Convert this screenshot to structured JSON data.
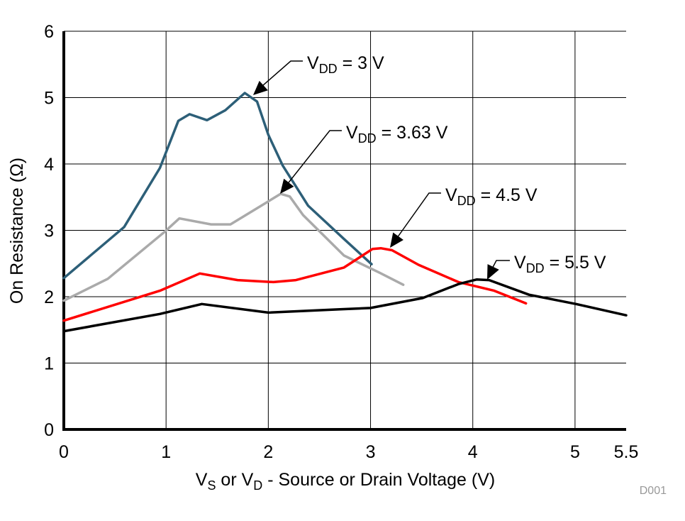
{
  "chart_data": {
    "type": "line",
    "title": "",
    "xlabel": {
      "p1": "V",
      "s1": "S",
      "p2": " or V",
      "s2": "D",
      "p3": " - Source or Drain Voltage (V)"
    },
    "ylabel": "On Resistance (Ω)",
    "xlim": [
      0,
      5.5
    ],
    "ylim": [
      0,
      6
    ],
    "xticks": [
      0,
      1,
      2,
      3,
      4,
      5,
      5.5
    ],
    "xtick_labels": [
      "0",
      "1",
      "2",
      "3",
      "4",
      "5",
      "5.5"
    ],
    "yticks": [
      0,
      1,
      2,
      3,
      4,
      5,
      6
    ],
    "ytick_labels": [
      "0",
      "1",
      "2",
      "3",
      "4",
      "5",
      "6"
    ],
    "grid": true,
    "footnote": "D001",
    "series": [
      {
        "name": "VDD = 3 V",
        "label": {
          "pre": "V",
          "sub": "DD",
          "post": " = 3 V"
        },
        "color": "#2d5f78",
        "x": [
          0,
          0.59,
          0.94,
          1.12,
          1.23,
          1.4,
          1.58,
          1.77,
          1.89,
          2.0,
          2.14,
          2.39,
          2.74,
          3.01
        ],
        "y": [
          2.28,
          3.05,
          3.94,
          4.65,
          4.75,
          4.66,
          4.81,
          5.07,
          4.94,
          4.44,
          3.98,
          3.37,
          2.87,
          2.49
        ]
      },
      {
        "name": "VDD = 3.63 V",
        "label": {
          "pre": "V",
          "sub": "DD",
          "post": " = 3.63 V"
        },
        "color": "#aaaaaa",
        "x": [
          0,
          0.43,
          0.98,
          1.13,
          1.44,
          1.63,
          1.93,
          2.12,
          2.21,
          2.34,
          2.74,
          3.09,
          3.32
        ],
        "y": [
          1.94,
          2.27,
          2.97,
          3.18,
          3.09,
          3.09,
          3.37,
          3.55,
          3.51,
          3.23,
          2.62,
          2.36,
          2.18
        ]
      },
      {
        "name": "VDD = 4.5 V",
        "label": {
          "pre": "V",
          "sub": "DD",
          "post": " = 4.5 V"
        },
        "color": "#ff0000",
        "x": [
          0,
          0.94,
          1.33,
          1.7,
          2.05,
          2.27,
          2.74,
          3.02,
          3.1,
          3.21,
          3.47,
          3.86,
          4.21,
          4.52
        ],
        "y": [
          1.64,
          2.09,
          2.35,
          2.25,
          2.22,
          2.25,
          2.44,
          2.72,
          2.73,
          2.7,
          2.48,
          2.22,
          2.09,
          1.9
        ]
      },
      {
        "name": "VDD = 5.5 V",
        "label": {
          "pre": "V",
          "sub": "DD",
          "post": " = 5.5 V"
        },
        "color": "#000000",
        "x": [
          0,
          0.94,
          1.35,
          2.0,
          2.7,
          3.0,
          3.51,
          3.86,
          4.04,
          4.16,
          4.55,
          5.01,
          5.5
        ],
        "y": [
          1.48,
          1.74,
          1.89,
          1.76,
          1.81,
          1.83,
          1.98,
          2.19,
          2.26,
          2.25,
          2.03,
          1.89,
          1.72
        ]
      }
    ]
  }
}
